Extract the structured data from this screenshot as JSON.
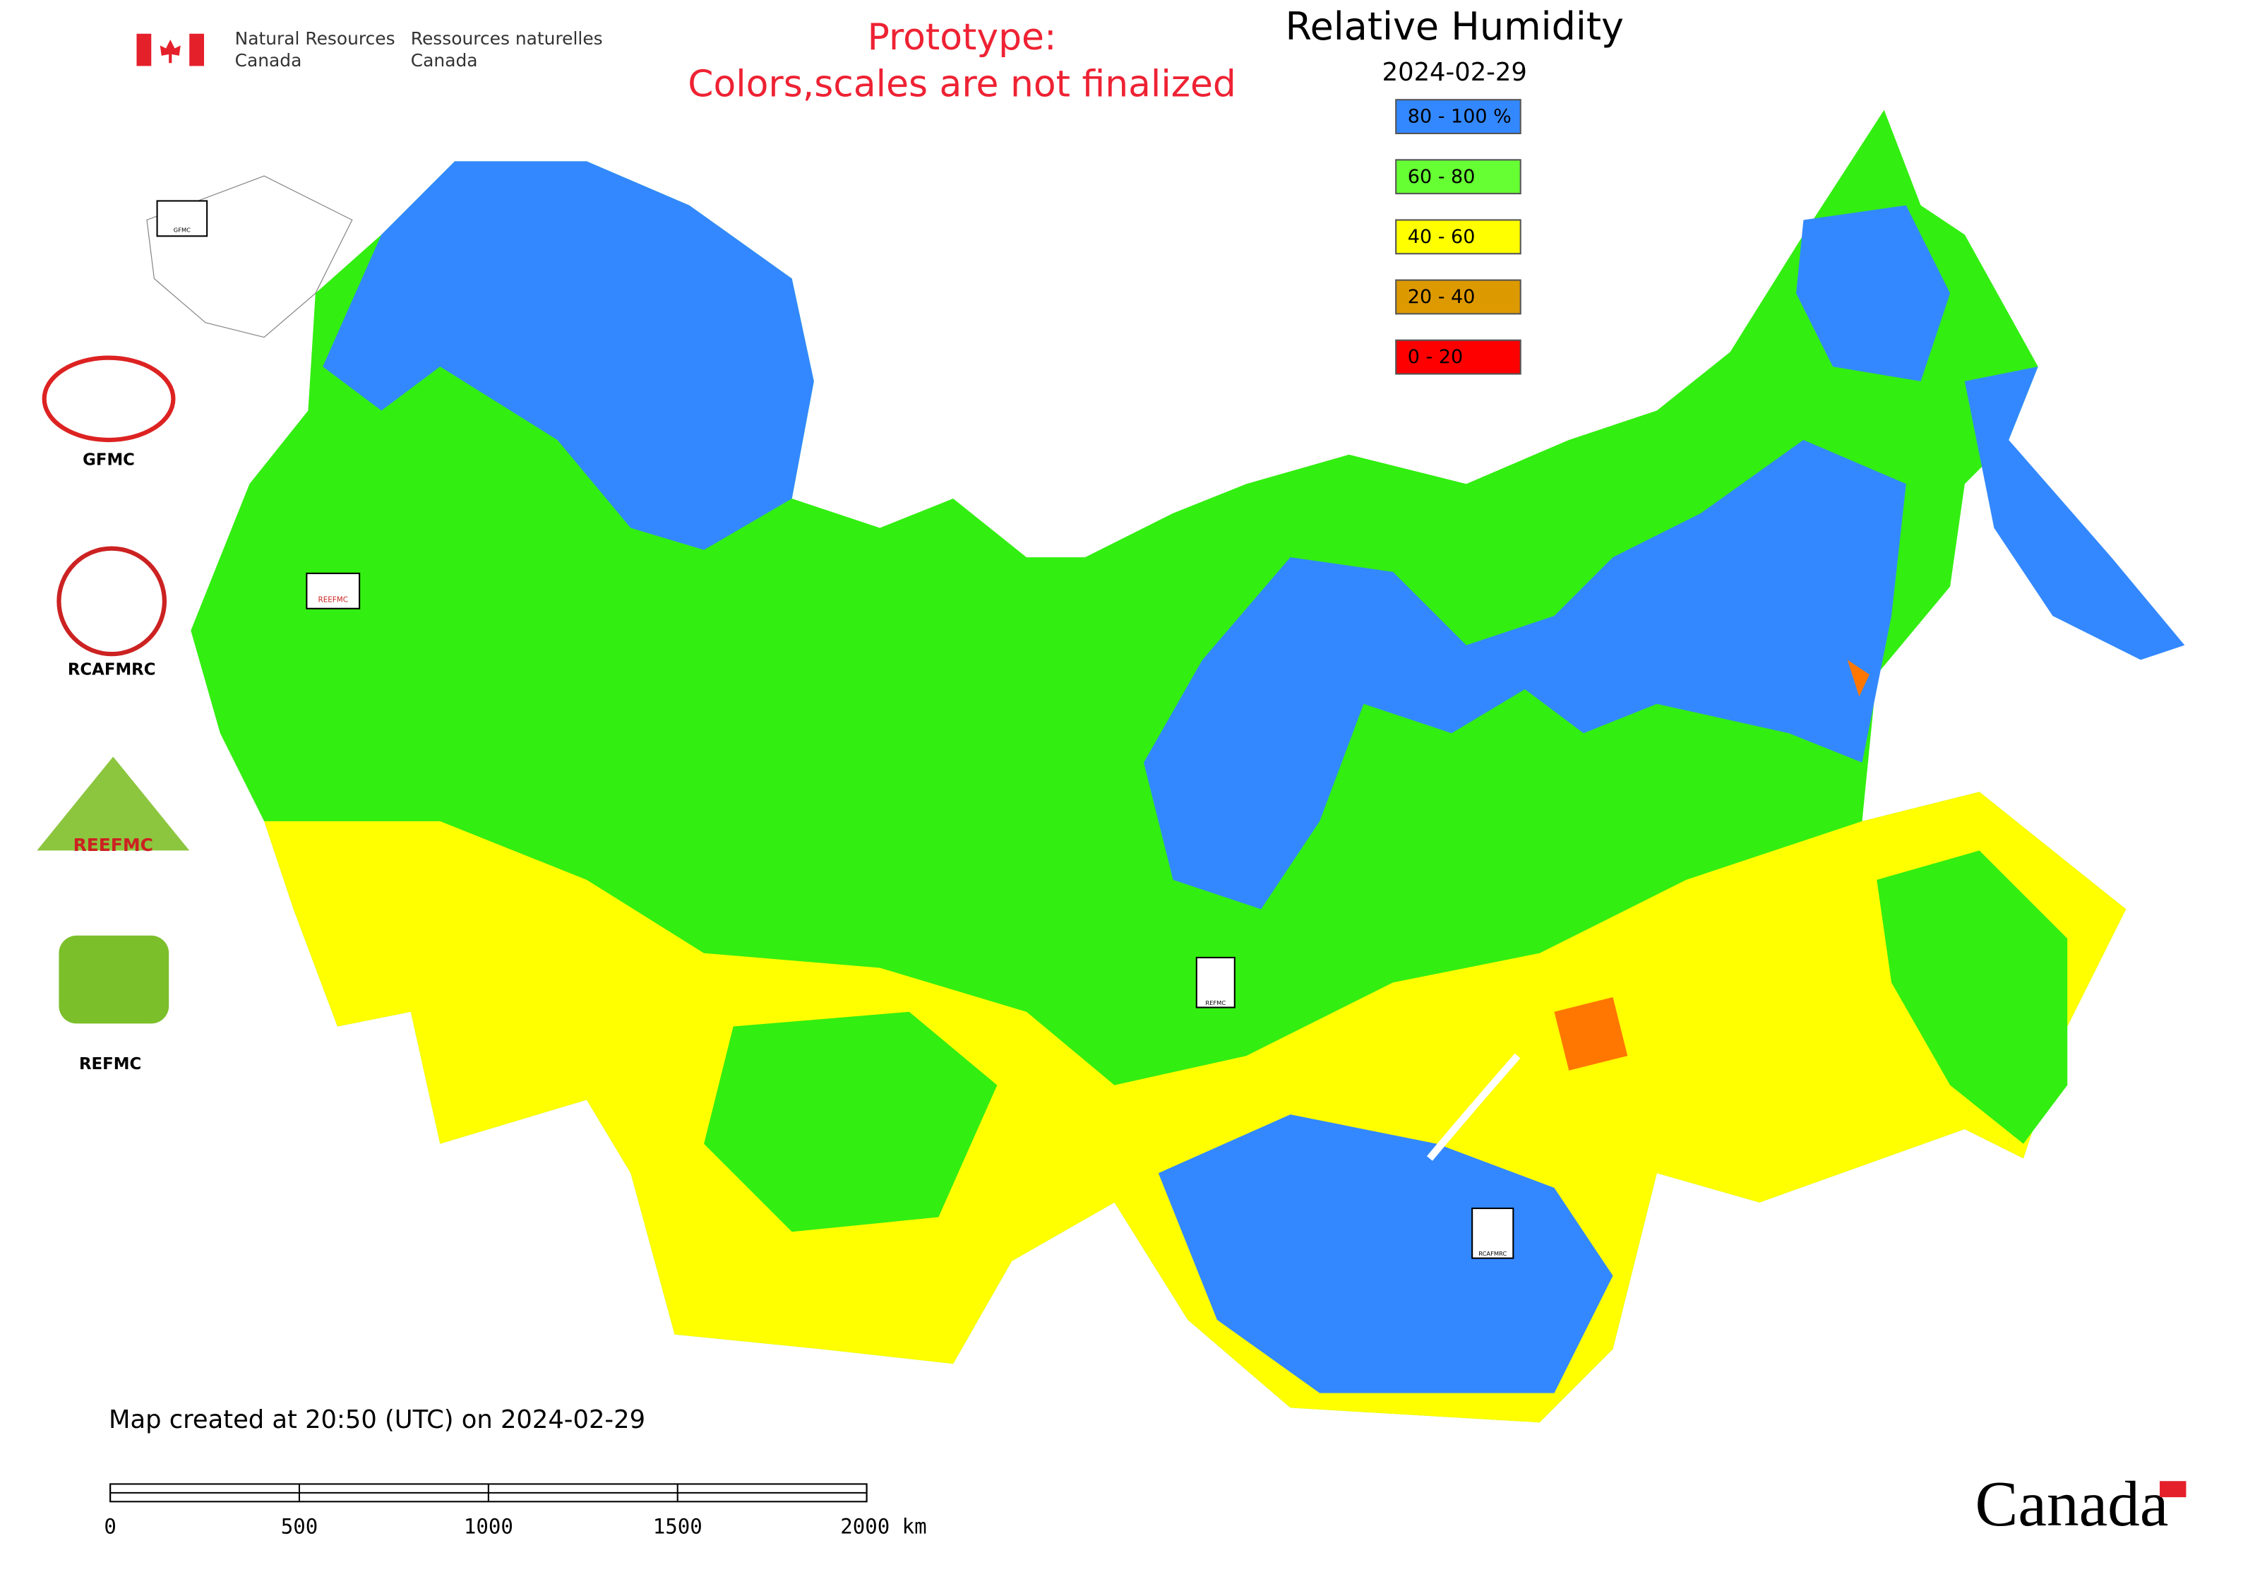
{
  "header": {
    "org_en": [
      "Natural Resources",
      "Canada"
    ],
    "org_fr": [
      "Ressources naturelles",
      "Canada"
    ]
  },
  "notice": [
    "Prototype:",
    "Colors,scales are not finalized"
  ],
  "title": "Relative Humidity",
  "date": "2024-02-29",
  "legend": [
    {
      "label": "80 - 100 %",
      "color": "#3388ff"
    },
    {
      "label": "60 - 80",
      "color": "#66ff33"
    },
    {
      "label": "40 - 60",
      "color": "#ffff00"
    },
    {
      "label": "20 - 40",
      "color": "#dd9900"
    },
    {
      "label": "0 - 20",
      "color": "#ff0000"
    }
  ],
  "logos": [
    "GFMC",
    "RCAFMRC",
    "REEFMC",
    "REFMC"
  ],
  "markers": [
    "GFMC",
    "REEFMC",
    "REFMC",
    "RCAFMRC"
  ],
  "footer": "Map created at 20:50 (UTC) on 2024-02-29",
  "scale": [
    "0",
    "500",
    "1000",
    "1500",
    "2000 km"
  ],
  "wordmark": "Canada"
}
